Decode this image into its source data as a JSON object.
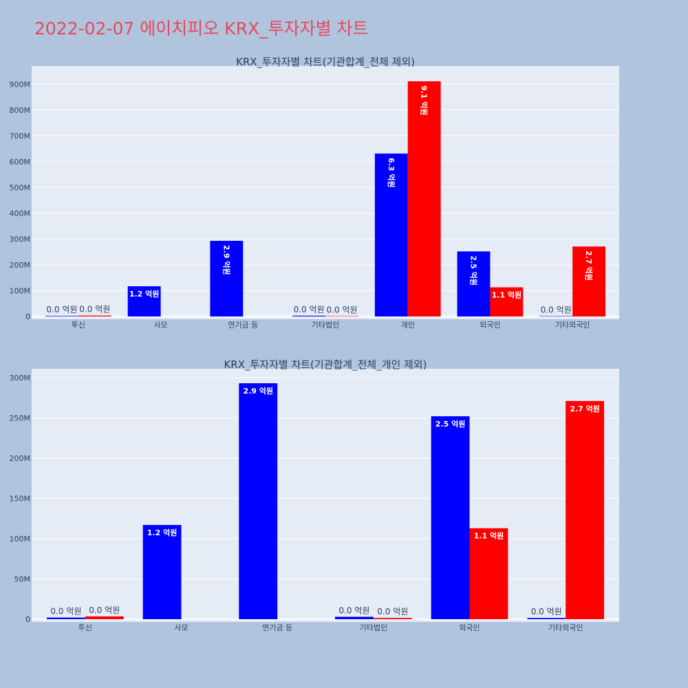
{
  "page_title": "2022-02-07 에이치피오 KRX_투자자별 차트",
  "colors": {
    "buy": "#0000ff",
    "sell": "#ff0000",
    "plot_bg": "#e5ecf6",
    "page_bg": "#b0c4de"
  },
  "chart_data": [
    {
      "type": "bar",
      "title": "KRX_투자자별 차트(기관합계_전체 제외)",
      "categories": [
        "투신",
        "사모",
        "연기금 등",
        "기타법인",
        "개인",
        "외국인",
        "기타외국인"
      ],
      "series": [
        {
          "color": "#0000ff",
          "values": [
            2000000,
            117000000,
            293000000,
            3000000,
            631000000,
            252000000,
            1500000
          ],
          "labels": [
            "0.0 억원",
            "1.2 억원",
            "2.9 억원",
            "0.0 억원",
            "6.3 억원",
            "2.5 억원",
            "0.0 억원"
          ]
        },
        {
          "color": "#ff0000",
          "values": [
            3500000,
            0,
            0,
            1500000,
            911000000,
            113000000,
            271000000
          ],
          "labels": [
            "0.0 억원",
            "",
            "",
            "0.0 억원",
            "9.1 억원",
            "1.1 억원",
            "2.7 억원"
          ]
        }
      ],
      "ylim": [
        0,
        970000000
      ],
      "yticks": [
        0,
        100000000,
        200000000,
        300000000,
        400000000,
        500000000,
        600000000,
        700000000,
        800000000,
        900000000
      ],
      "ytick_labels": [
        "0",
        "100M",
        "200M",
        "300M",
        "400M",
        "500M",
        "600M",
        "700M",
        "800M",
        "900M"
      ],
      "grid": true
    },
    {
      "type": "bar",
      "title": "KRX_투자자별 차트(기관합계_전체_개인 제외)",
      "categories": [
        "투신",
        "사모",
        "연기금 등",
        "기타법인",
        "외국인",
        "기타외국인"
      ],
      "series": [
        {
          "color": "#0000ff",
          "values": [
            2000000,
            117000000,
            293000000,
            3000000,
            252000000,
            1500000
          ],
          "labels": [
            "0.0 억원",
            "1.2 억원",
            "2.9 억원",
            "0.0 억원",
            "2.5 억원",
            "0.0 억원"
          ]
        },
        {
          "color": "#ff0000",
          "values": [
            3500000,
            0,
            0,
            1500000,
            113000000,
            271000000
          ],
          "labels": [
            "0.0 억원",
            "",
            "",
            "0.0 억원",
            "1.1 억원",
            "2.7 억원"
          ]
        }
      ],
      "ylim": [
        0,
        311000000
      ],
      "yticks": [
        0,
        50000000,
        100000000,
        150000000,
        200000000,
        250000000,
        300000000
      ],
      "ytick_labels": [
        "0",
        "50M",
        "100M",
        "150M",
        "200M",
        "250M",
        "300M"
      ],
      "grid": true
    }
  ]
}
